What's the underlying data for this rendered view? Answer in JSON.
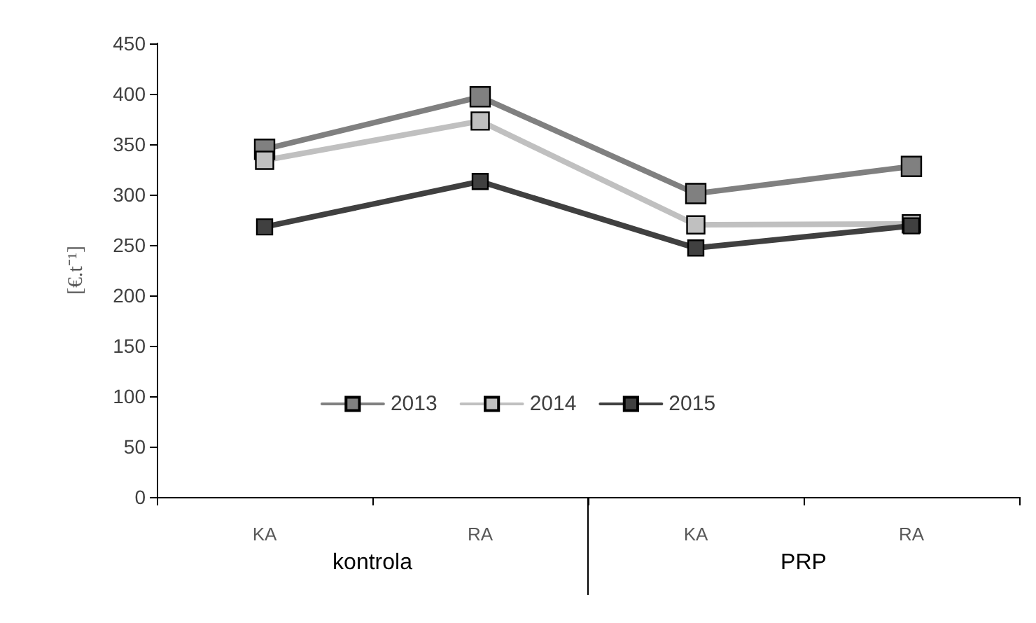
{
  "chart_data": {
    "type": "line",
    "ylabel": "[€.t⁻¹]",
    "categories": [
      "KA",
      "RA",
      "KA",
      "RA"
    ],
    "series": [
      {
        "name": "2013",
        "color": "#808080",
        "values": [
          345,
          397,
          301,
          328
        ]
      },
      {
        "name": "2014",
        "color": "#c0c0c0",
        "values": [
          334,
          373,
          270,
          271
        ]
      },
      {
        "name": "2015",
        "color": "#404040",
        "values": [
          268,
          313,
          247,
          269
        ]
      }
    ],
    "ylim": [
      0,
      450
    ],
    "yticks": [
      0,
      50,
      100,
      150,
      200,
      250,
      300,
      350,
      400,
      450
    ],
    "grid": false,
    "legend": "bottom",
    "marker": "square",
    "line_style": "solid",
    "annotations": [
      "kontrola",
      "PRP"
    ]
  }
}
